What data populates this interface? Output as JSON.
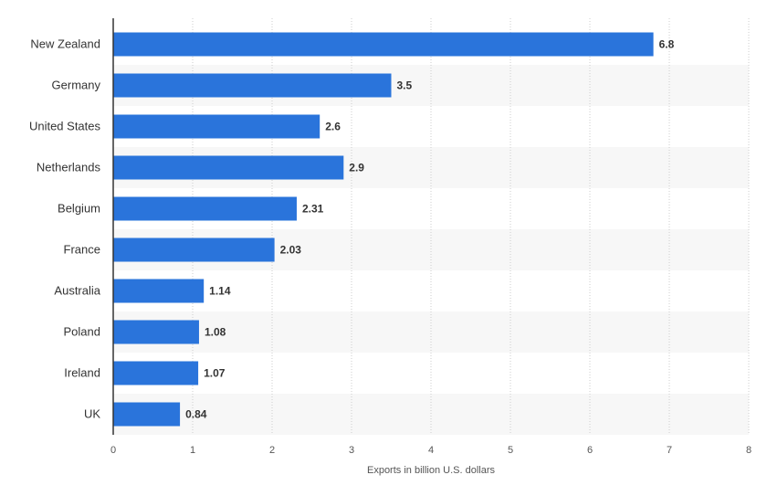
{
  "chart_data": {
    "type": "bar",
    "orientation": "horizontal",
    "categories": [
      "New Zealand",
      "Germany",
      "United States",
      "Netherlands",
      "Belgium",
      "France",
      "Australia",
      "Poland",
      "Ireland",
      "UK"
    ],
    "values": [
      6.8,
      3.5,
      2.6,
      2.9,
      2.31,
      2.03,
      1.14,
      1.08,
      1.07,
      0.84
    ],
    "value_labels": [
      "6.8",
      "3.5",
      "2.6",
      "2.9",
      "2.31",
      "2.03",
      "1.14",
      "1.08",
      "1.07",
      "0.84"
    ],
    "xlabel": "Exports in billion U.S. dollars",
    "ylabel": "",
    "title": "",
    "xlim": [
      0,
      8
    ],
    "x_ticks": [
      0,
      1,
      2,
      3,
      4,
      5,
      6,
      7,
      8
    ],
    "grid": true,
    "legend": "none",
    "bar_color": "#2a74db",
    "band_color": "#f7f7f7",
    "grid_color": "#cccccc",
    "axis_color": "#333333"
  }
}
